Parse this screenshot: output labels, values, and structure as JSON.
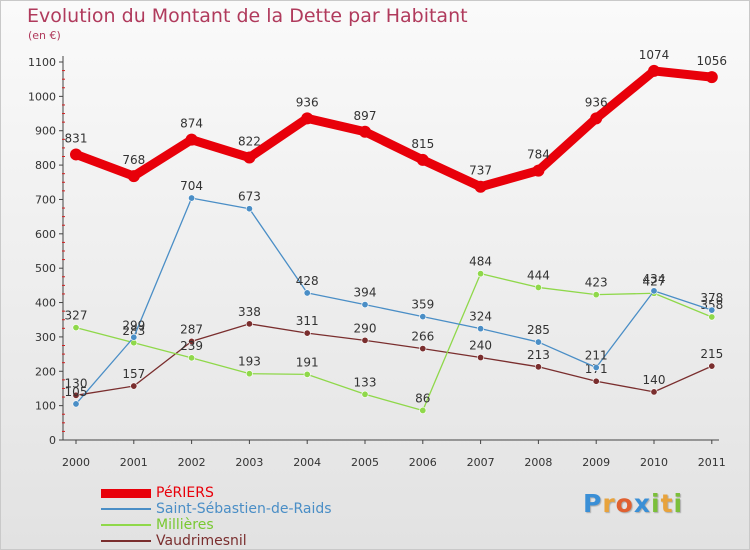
{
  "title": "Evolution du Montant de la Dette par Habitant",
  "subtitle": "(en €)",
  "logo": {
    "text": "Proxiti",
    "letters": [
      "P",
      "r",
      "o",
      "x",
      "i",
      "t",
      "i"
    ],
    "colors": [
      "#3a8fd6",
      "#e8a33c",
      "#e06030",
      "#3a8fd6",
      "#7bbf3a",
      "#e8a33c",
      "#7bbf3a"
    ]
  },
  "chart_data": {
    "type": "line",
    "categories": [
      "2000",
      "2001",
      "2002",
      "2003",
      "2004",
      "2005",
      "2006",
      "2007",
      "2008",
      "2009",
      "2010",
      "2011"
    ],
    "ylim": [
      0,
      1100
    ],
    "yticks": [
      0,
      100,
      200,
      300,
      400,
      500,
      600,
      700,
      800,
      900,
      1000,
      1100
    ],
    "grid": false,
    "legend_position": "bottom-left",
    "series": [
      {
        "name": "PéRIERS",
        "color": "#e8000a",
        "text_color": "#e8000a",
        "values": [
          831,
          768,
          874,
          822,
          936,
          897,
          815,
          737,
          784,
          936,
          1074,
          1056
        ],
        "labels": [
          "831",
          "768",
          "874",
          "822",
          "936",
          "897",
          "815",
          "737",
          "784",
          "936",
          "1074",
          "1056"
        ]
      },
      {
        "name": "Saint-Sébastien-de-Raids",
        "color": "#4a8ec6",
        "text_color": "#4a8ec6",
        "values": [
          105,
          299,
          704,
          673,
          428,
          394,
          359,
          324,
          285,
          211,
          434,
          378
        ],
        "labels": [
          "105",
          "299",
          "704",
          "673",
          "428",
          "394",
          "359",
          "324",
          "285",
          "211",
          "434",
          "378"
        ]
      },
      {
        "name": "Millières",
        "color": "#8fd84a",
        "text_color": "#79c832",
        "values": [
          327,
          283,
          239,
          193,
          191,
          133,
          86,
          484,
          444,
          423,
          427,
          358
        ],
        "labels": [
          "327",
          "283",
          "239",
          "193",
          "191",
          "133",
          "86",
          "484",
          "444",
          "423",
          "427",
          "358"
        ]
      },
      {
        "name": "Vaudrimesnil",
        "color": "#7a2e2e",
        "text_color": "#7a2e2e",
        "values": [
          130,
          157,
          287,
          338,
          311,
          290,
          266,
          240,
          213,
          171,
          140,
          215
        ],
        "labels": [
          "130",
          "157",
          "287",
          "338",
          "311",
          "290",
          "266",
          "240",
          "213",
          "171",
          "140",
          "215"
        ]
      }
    ]
  }
}
